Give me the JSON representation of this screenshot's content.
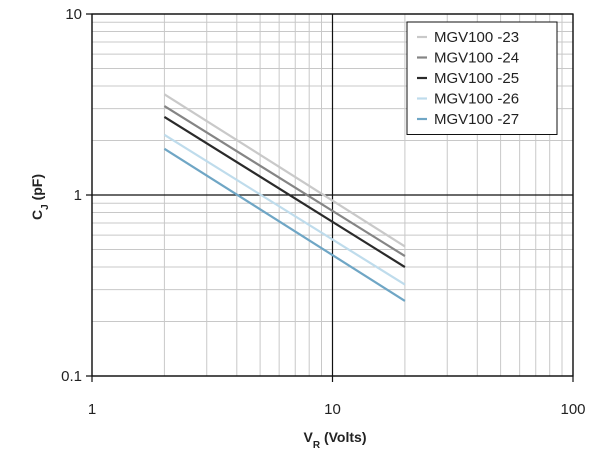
{
  "chart_data": {
    "type": "line",
    "x_scale": "log",
    "y_scale": "log",
    "xlim": [
      1,
      100
    ],
    "ylim": [
      0.1,
      10
    ],
    "x_ticks": [
      "1",
      "10",
      "100"
    ],
    "y_ticks": [
      "0.1",
      "1",
      "10"
    ],
    "xlabel": {
      "main": "V",
      "sub": "R",
      "rest": " (Volts)"
    },
    "ylabel": {
      "main": "C",
      "sub": "J",
      "rest": " (pF)"
    },
    "grid": true,
    "legend_position": "top-right",
    "series": [
      {
        "name": "MGV100 -23",
        "color": "#c9c9c9",
        "x": [
          2,
          20
        ],
        "y": [
          3.6,
          0.52
        ]
      },
      {
        "name": "MGV100 -24",
        "color": "#858585",
        "x": [
          2,
          20
        ],
        "y": [
          3.1,
          0.46
        ]
      },
      {
        "name": "MGV100 -25",
        "color": "#2a2a2a",
        "x": [
          2,
          20
        ],
        "y": [
          2.7,
          0.4
        ]
      },
      {
        "name": "MGV100 -26",
        "color": "#bfdcec",
        "x": [
          2,
          20
        ],
        "y": [
          2.15,
          0.32
        ]
      },
      {
        "name": "MGV100 -27",
        "color": "#6fa6c5",
        "x": [
          2,
          20
        ],
        "y": [
          1.8,
          0.26
        ]
      }
    ]
  }
}
